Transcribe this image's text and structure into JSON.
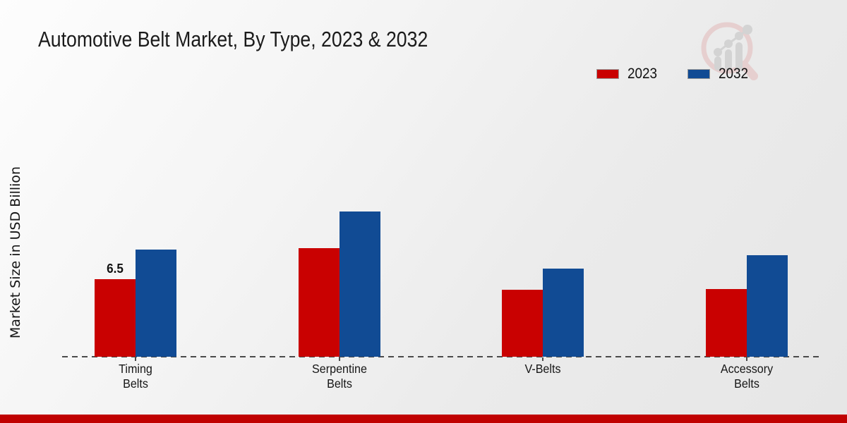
{
  "title": "Automotive Belt Market, By Type, 2023 & 2032",
  "y_axis": {
    "label": "Market Size in USD Billion"
  },
  "legend": {
    "items": [
      {
        "label": "2023",
        "color": "#c90101"
      },
      {
        "label": "2032",
        "color": "#114b94"
      }
    ]
  },
  "chart_data": {
    "type": "bar",
    "categories": [
      "Timing Belts",
      "Serpentine Belts",
      "V-Belts",
      "Accessory Belts"
    ],
    "series": [
      {
        "name": "2023",
        "color": "#c90101",
        "values": [
          6.5,
          9.1,
          5.6,
          5.7
        ]
      },
      {
        "name": "2032",
        "color": "#114b94",
        "values": [
          9.0,
          12.2,
          7.4,
          8.5
        ]
      }
    ],
    "data_labels": [
      {
        "series": "2023",
        "category": "Timing Belts",
        "text": "6.5"
      }
    ],
    "title": "Automotive Belt Market, By Type, 2023 & 2032",
    "xlabel": "",
    "ylabel": "Market Size in USD Billion",
    "ylim": [
      0,
      13
    ],
    "grid": false,
    "legend_position": "upper right",
    "baseline_style": "dashed"
  },
  "branding": {
    "watermark_icon": "magnifier-bar-chart-logo"
  },
  "footer": {
    "band_color": "#c00101"
  }
}
